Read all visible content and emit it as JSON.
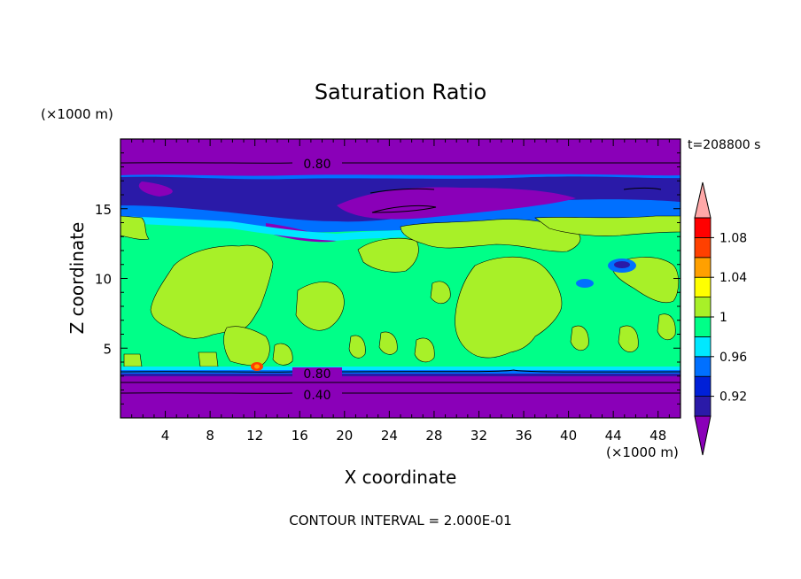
{
  "chart_data": {
    "type": "heatmap",
    "title": "Saturation Ratio",
    "xlabel": "X coordinate",
    "ylabel": "Z coordinate",
    "x_units": "(×1000 m)",
    "y_units": "(×1000 m)",
    "time_label": "t=208800 s",
    "footer": "CONTOUR INTERVAL = 2.000E-01",
    "xlim": [
      0,
      50
    ],
    "ylim": [
      0,
      20
    ],
    "x_ticks": [
      "4",
      "8",
      "12",
      "16",
      "20",
      "24",
      "28",
      "32",
      "36",
      "40",
      "44",
      "48"
    ],
    "y_ticks": [
      "5",
      "10",
      "15"
    ],
    "contour_labels": [
      "0.80",
      "0.80",
      "0.40"
    ],
    "colorbar": {
      "levels": [
        0.9,
        0.92,
        0.94,
        0.96,
        0.98,
        1.0,
        1.02,
        1.04,
        1.06,
        1.08,
        1.1
      ],
      "tick_labels": [
        "0.92",
        "0.96",
        "1",
        "1.04",
        "1.08"
      ],
      "colors": [
        "#8a00b8",
        "#2a1aa8",
        "#0020d8",
        "#0070ff",
        "#00e8ff",
        "#00ff88",
        "#a8f028",
        "#ffff00",
        "#ffa000",
        "#ff4000",
        "#ff0000",
        "#ffa8a8"
      ]
    }
  }
}
